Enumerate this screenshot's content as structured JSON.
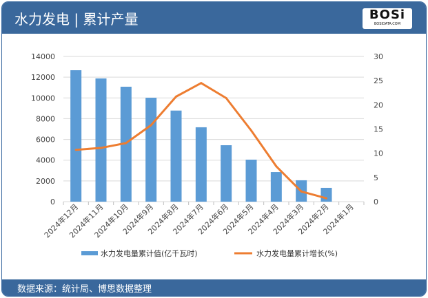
{
  "header": {
    "title": "水力发电 | 累计产量",
    "logo_text": "BOSi",
    "logo_sub": "BOSIDATA.COM"
  },
  "footer": {
    "source": "数据来源：统计局、博思数据整理"
  },
  "colors": {
    "bar": "#5b9bd5",
    "line": "#ed7d31",
    "header": "#3a689c"
  },
  "chart_data": {
    "type": "bar+line",
    "categories": [
      "2024年12月",
      "2024年11月",
      "2024年10月",
      "2024年9月",
      "2024年8月",
      "2024年7月",
      "2024年6月",
      "2024年5月",
      "2024年4月",
      "2024年3月",
      "2024年2月",
      "2024年1月"
    ],
    "series": [
      {
        "name": "水力发电量累计值(亿千瓦时)",
        "type": "bar",
        "axis": "left",
        "values": [
          12670,
          11880,
          11080,
          10020,
          8780,
          7170,
          5440,
          4050,
          2850,
          2060,
          1330,
          null
        ]
      },
      {
        "name": "水力发电量累计增长(%)",
        "type": "line",
        "axis": "right",
        "values": [
          10.7,
          11.1,
          12.1,
          15.8,
          21.7,
          24.5,
          21.4,
          14.7,
          7.3,
          2.1,
          0.7,
          null
        ]
      }
    ],
    "y_left": {
      "range": [
        0,
        14000
      ],
      "ticks": [
        0,
        2000,
        4000,
        6000,
        8000,
        10000,
        12000,
        14000
      ]
    },
    "y_right": {
      "range": [
        0,
        30
      ],
      "ticks": [
        0,
        5,
        10,
        15,
        20,
        25,
        30
      ]
    },
    "grid": true,
    "legend": "bottom"
  }
}
